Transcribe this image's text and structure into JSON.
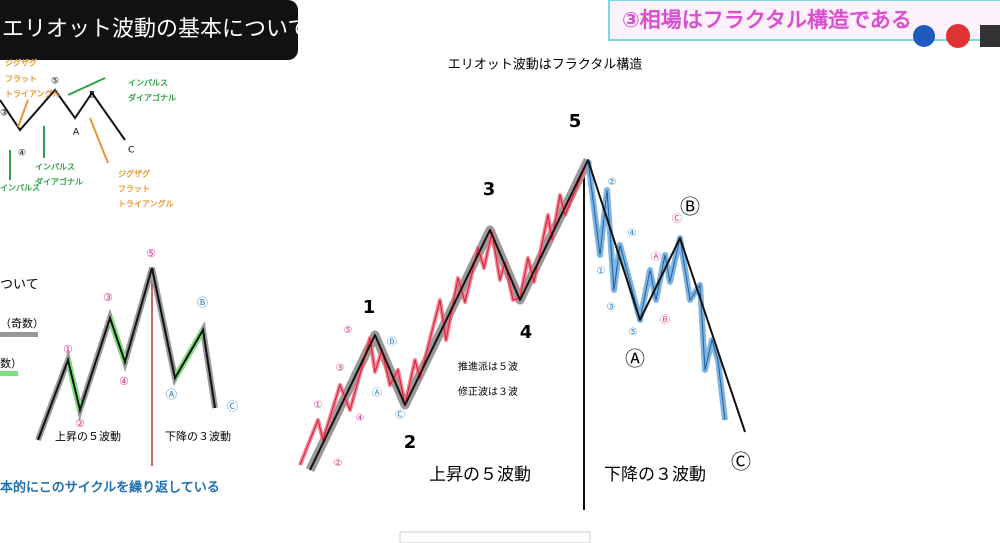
{
  "header": {
    "title": "エリオット波動の基本について"
  },
  "banner": {
    "title": "③相場はフラクタル構造である"
  },
  "left_top_diagram": {
    "labels": [
      "ジグザグ",
      "フラット",
      "トライアングル",
      "⑤",
      "インパルス",
      "ダイアゴナル",
      "B",
      "③",
      "A",
      "④",
      "C",
      "インパルス",
      "ダイアゴナル",
      "インパルス",
      "ジグザグ",
      "フラット",
      "トライアングル"
    ]
  },
  "left_panel": {
    "heading": "ついて",
    "legend": [
      "（奇数）",
      "数）"
    ],
    "wave_labels": [
      "①",
      "②",
      "③",
      "④",
      "⑤",
      "Ⓐ",
      "Ⓑ",
      "Ⓒ"
    ],
    "captions": [
      "上昇の５波動",
      "下降の３波動"
    ],
    "footer": "本的にこのサイクルを繰り返している"
  },
  "main_diagram": {
    "title": "エリオット波動はフラクタル構造",
    "wave_numbers": [
      "1",
      "2",
      "3",
      "4",
      "5"
    ],
    "sub_impulse_labels": [
      "①",
      "②",
      "③",
      "④",
      "⑤"
    ],
    "sub_corrective_labels": [
      "Ⓐ",
      "Ⓑ",
      "Ⓒ"
    ],
    "notes": [
      "推進派は５波",
      "修正波は３波"
    ],
    "captions": [
      "上昇の５波動",
      "下降の３波動"
    ],
    "corrective_labels": [
      "Ⓐ",
      "Ⓑ",
      "Ⓒ"
    ],
    "down_impulse_labels": [
      "①",
      "②",
      "③",
      "④",
      "⑤"
    ],
    "down_corrective_labels": [
      "Ⓐ",
      "Ⓑ",
      "Ⓒ"
    ]
  }
}
